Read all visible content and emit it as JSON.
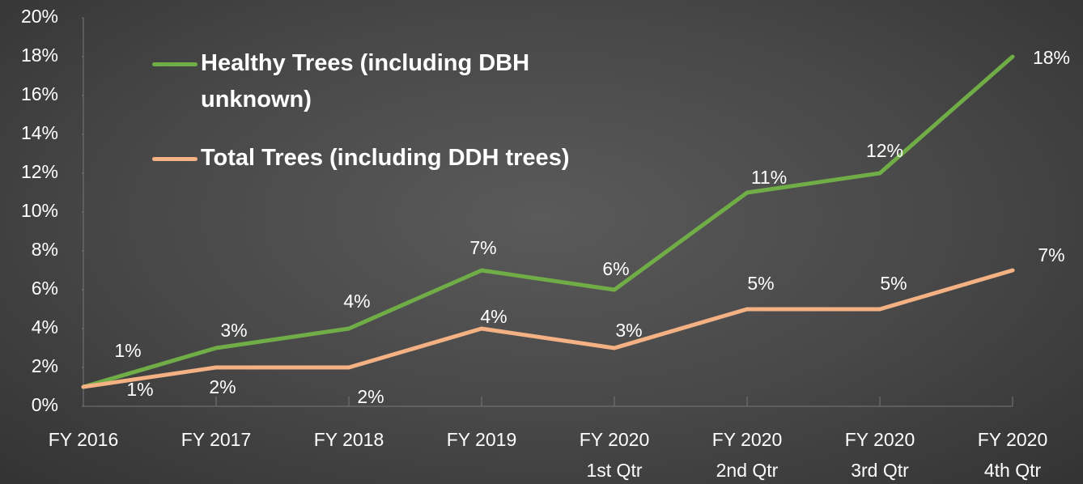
{
  "chart_data": {
    "type": "line",
    "categories": [
      "FY 2016",
      "FY 2017",
      "FY 2018",
      "FY 2019",
      "FY 2020\n1st Qtr",
      "FY 2020\n2nd Qtr",
      "FY 2020\n3rd Qtr",
      "FY 2020\n4th Qtr"
    ],
    "series": [
      {
        "name": "Healthy Trees (including DBH unknown)",
        "color": "#70ad47",
        "values": [
          1,
          3,
          4,
          7,
          6,
          11,
          12,
          18
        ],
        "value_labels": [
          "1%",
          "3%",
          "4%",
          "7%",
          "6%",
          "11%",
          "12%",
          "18%"
        ]
      },
      {
        "name": "Total Trees (including DDH trees)",
        "color": "#f4b183",
        "values": [
          1,
          2,
          2,
          4,
          3,
          5,
          5,
          7
        ],
        "value_labels": [
          "1%",
          "2%",
          "2%",
          "4%",
          "3%",
          "5%",
          "5%",
          "7%"
        ]
      }
    ],
    "ylim": [
      0,
      20
    ],
    "yticks": [
      {
        "value": 0,
        "label": "0%"
      },
      {
        "value": 2,
        "label": "2%"
      },
      {
        "value": 4,
        "label": "4%"
      },
      {
        "value": 6,
        "label": "6%"
      },
      {
        "value": 8,
        "label": "8%"
      },
      {
        "value": 10,
        "label": "10%"
      },
      {
        "value": 12,
        "label": "12%"
      },
      {
        "value": 14,
        "label": "14%"
      },
      {
        "value": 16,
        "label": "16%"
      },
      {
        "value": 18,
        "label": "18%"
      },
      {
        "value": 20,
        "label": "20%"
      }
    ]
  }
}
